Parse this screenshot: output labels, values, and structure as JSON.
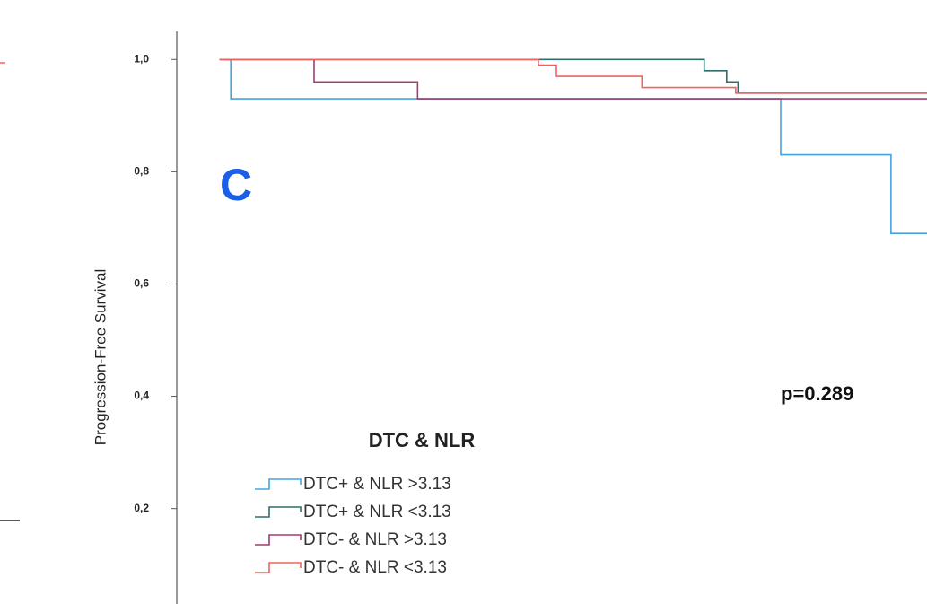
{
  "chart_data": {
    "type": "line",
    "step": "post",
    "panel_label": "C",
    "annotation": "p=0.289",
    "y_label": "Progression-Free Survival",
    "legend_title": "DTC & NLR",
    "xlim": [
      0,
      100
    ],
    "ylim": [
      0.03,
      1.05
    ],
    "yticks": [
      {
        "value": 1,
        "label": "1,0"
      },
      {
        "value": 0.8,
        "label": "0,8"
      },
      {
        "value": 0.6,
        "label": "0,6"
      },
      {
        "value": 0.4,
        "label": "0,4"
      },
      {
        "value": 0.2,
        "label": "0,2"
      }
    ],
    "series": [
      {
        "name": "DTC+ & NLR >3.13",
        "color": "#45a3e0",
        "x": [
          5.7,
          7.2,
          80.5,
          95.2,
          100
        ],
        "values": [
          1,
          0.93,
          0.83,
          0.69,
          0.69
        ]
      },
      {
        "name": "DTC+ & NLR <3.13",
        "color": "#2f6e68",
        "x": [
          5.7,
          70.3,
          73.3,
          74.8,
          100
        ],
        "values": [
          1,
          0.98,
          0.96,
          0.94,
          0.94
        ]
      },
      {
        "name": "DTC- & NLR >3.13",
        "color": "#9e3f6e",
        "x": [
          5.7,
          18.3,
          32.1,
          100
        ],
        "values": [
          1,
          0.96,
          0.93,
          0.93
        ]
      },
      {
        "name": "DTC- & NLR <3.13",
        "color": "#f0625f",
        "x": [
          5.7,
          48.2,
          50.6,
          62.0,
          74.5,
          100
        ],
        "values": [
          1,
          0.99,
          0.97,
          0.95,
          0.94,
          0.94
        ]
      }
    ]
  }
}
